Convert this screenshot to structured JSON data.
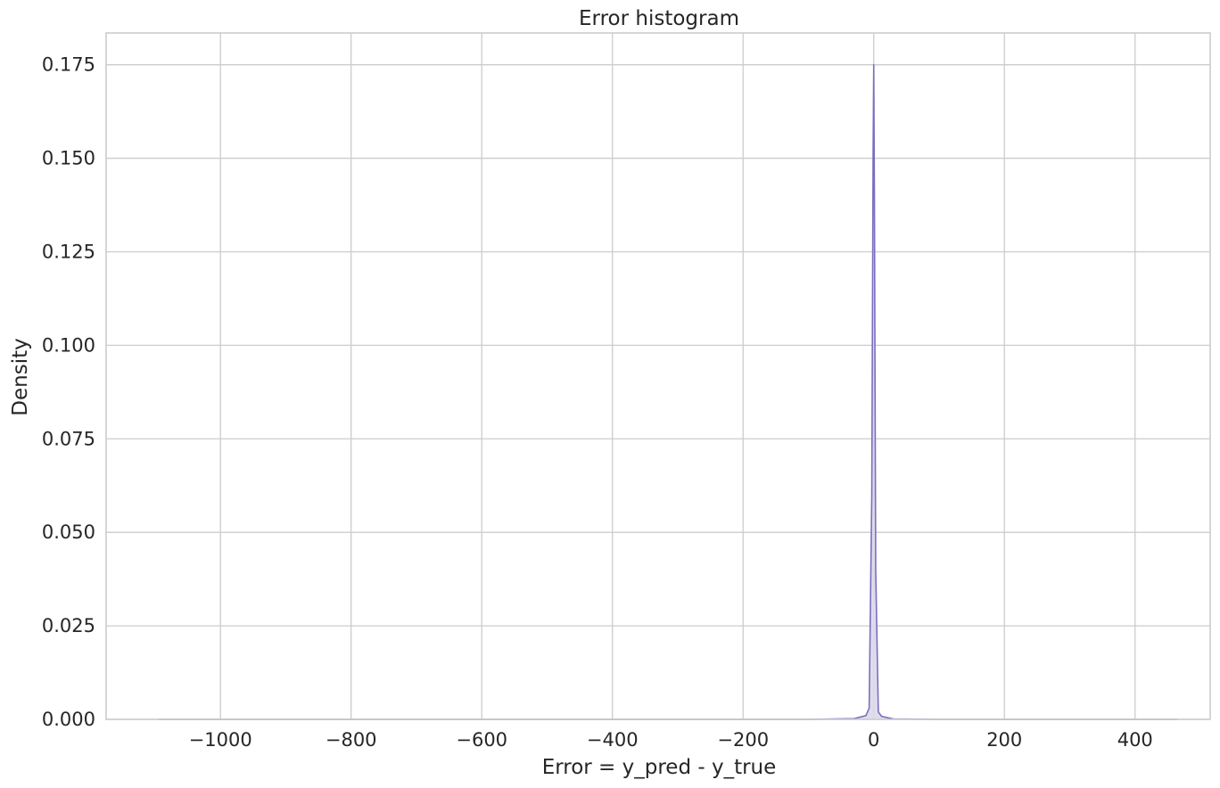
{
  "chart_data": {
    "type": "area",
    "title": "Error histogram",
    "xlabel": "Error = y_pred - y_true",
    "ylabel": "Density",
    "xlim": [
      -1175,
      515
    ],
    "ylim": [
      0,
      0.1835
    ],
    "x_ticks": [
      {
        "value": -1000,
        "label": "−1000"
      },
      {
        "value": -800,
        "label": "−800"
      },
      {
        "value": -600,
        "label": "−600"
      },
      {
        "value": -400,
        "label": "−400"
      },
      {
        "value": -200,
        "label": "−200"
      },
      {
        "value": 0,
        "label": "0"
      },
      {
        "value": 200,
        "label": "200"
      },
      {
        "value": 400,
        "label": "400"
      }
    ],
    "y_ticks": [
      {
        "value": 0.0,
        "label": "0.000"
      },
      {
        "value": 0.025,
        "label": "0.025"
      },
      {
        "value": 0.05,
        "label": "0.050"
      },
      {
        "value": 0.075,
        "label": "0.075"
      },
      {
        "value": 0.1,
        "label": "0.100"
      },
      {
        "value": 0.125,
        "label": "0.125"
      },
      {
        "value": 0.15,
        "label": "0.150"
      },
      {
        "value": 0.175,
        "label": "0.175"
      }
    ],
    "grid": true,
    "series": [
      {
        "color": "#7a6fbf",
        "fill": "#dcd9ea",
        "x": [
          -1095,
          -800,
          -400,
          -100,
          -30,
          -12,
          -7,
          -3,
          -1,
          0,
          1,
          3,
          7,
          12,
          30,
          100,
          300,
          465
        ],
        "y": [
          0,
          0,
          0,
          0,
          0.0002,
          0.001,
          0.003,
          0.06,
          0.15,
          0.175,
          0.14,
          0.04,
          0.002,
          0.0008,
          0.0001,
          0,
          0,
          0
        ]
      }
    ]
  }
}
